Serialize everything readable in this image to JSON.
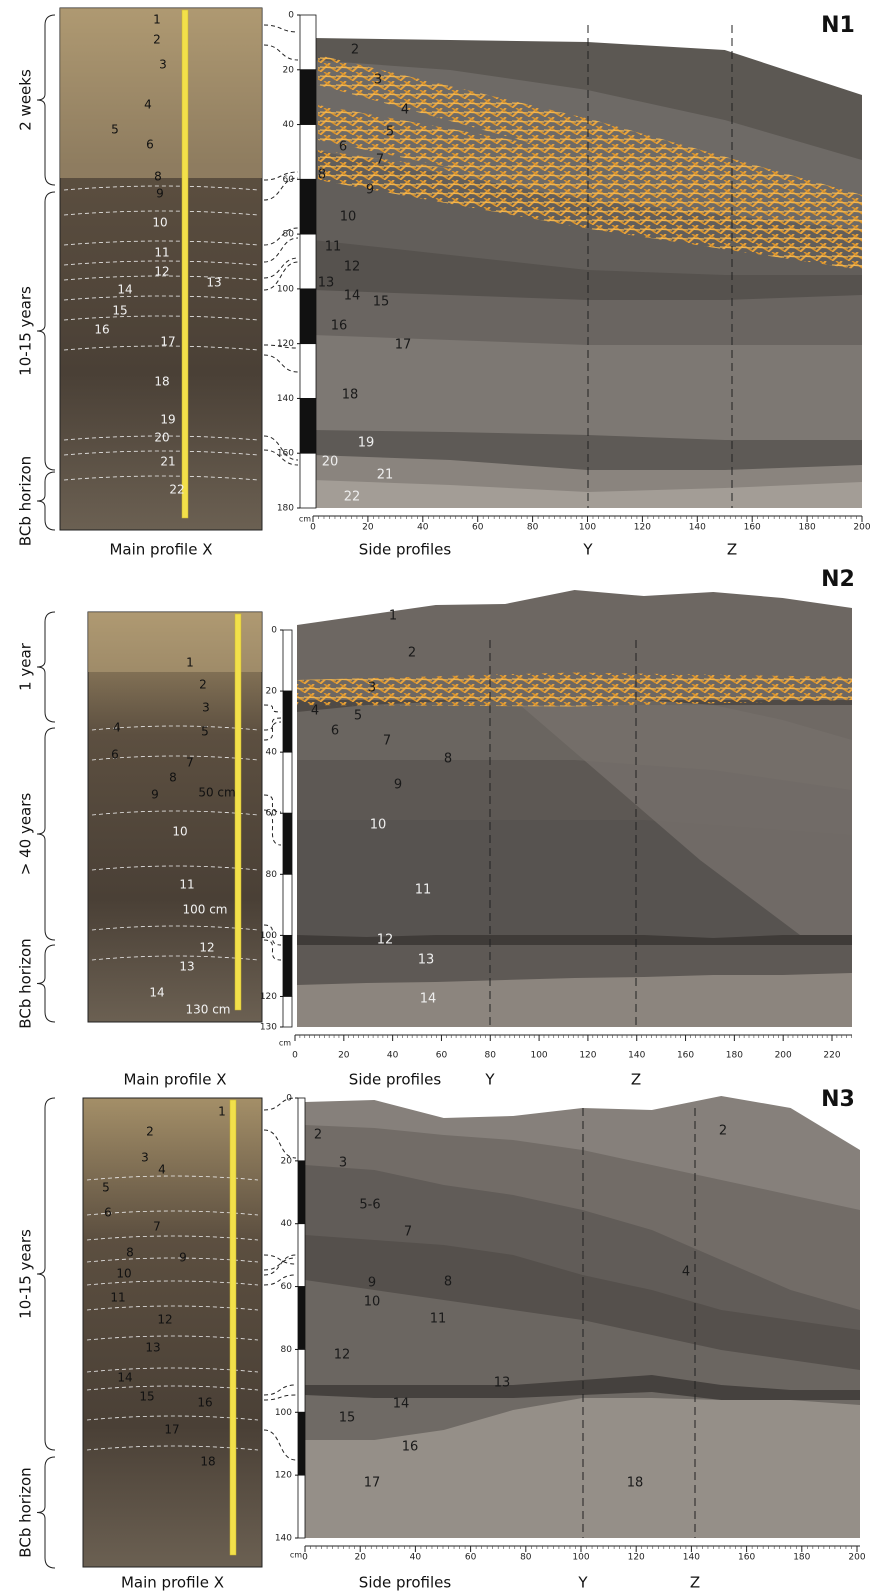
{
  "panels": [
    {
      "title": "N1",
      "age_labels": [
        "2 weeks",
        "10-15 years",
        "BCb horizon"
      ],
      "photo_labels": [
        "1",
        "2",
        "3",
        "4",
        "5",
        "6",
        "8",
        "9",
        "10",
        "11",
        "12",
        "13",
        "14",
        "15",
        "16",
        "17",
        "18",
        "19",
        "20",
        "21",
        "22"
      ],
      "photo_caption": "Main profile X",
      "depth_unit": "cm",
      "depth_ticks": [
        0,
        20,
        40,
        60,
        80,
        100,
        120,
        140,
        160,
        180
      ],
      "profile_labels": [
        "2",
        "3",
        "4",
        "5",
        "6",
        "7",
        "8",
        "9",
        "10",
        "11",
        "12",
        "13",
        "14",
        "15",
        "16",
        "17",
        "18",
        "19",
        "20",
        "21",
        "22"
      ],
      "x_ticks": [
        0,
        20,
        40,
        60,
        80,
        100,
        120,
        140,
        160,
        180,
        200
      ],
      "profile_caption": "Side profiles",
      "y_label": "Y",
      "z_label": "Z"
    },
    {
      "title": "N2",
      "age_labels": [
        "1 year",
        "> 40 years",
        "BCb horizon"
      ],
      "photo_labels": [
        "1",
        "2",
        "3",
        "4",
        "5",
        "6",
        "7",
        "8",
        "9",
        "50 cm",
        "10",
        "11",
        "100 cm",
        "12",
        "13",
        "14",
        "130 cm"
      ],
      "photo_caption": "Main profile X",
      "depth_unit": "cm",
      "depth_ticks": [
        0,
        20,
        40,
        60,
        80,
        100,
        120,
        130
      ],
      "profile_labels": [
        "1",
        "2",
        "3",
        "4",
        "5",
        "6",
        "7",
        "8",
        "9",
        "10",
        "11",
        "12",
        "13",
        "14"
      ],
      "x_ticks": [
        0,
        20,
        40,
        60,
        80,
        100,
        120,
        140,
        160,
        180,
        200,
        220
      ],
      "profile_caption": "Side profiles",
      "y_label": "Y",
      "z_label": "Z"
    },
    {
      "title": "N3",
      "age_labels": [
        "10-15 years",
        "BCb horizon"
      ],
      "photo_labels": [
        "1",
        "2",
        "3",
        "4",
        "5",
        "6",
        "7",
        "8",
        "9",
        "10",
        "11",
        "12",
        "13",
        "14",
        "15",
        "16",
        "17",
        "18"
      ],
      "photo_caption": "Main profile X",
      "depth_unit": "cm",
      "depth_ticks": [
        0,
        20,
        40,
        60,
        80,
        100,
        120,
        140
      ],
      "profile_labels": [
        "2",
        "3",
        "5-6",
        "7",
        "4",
        "9",
        "8",
        "10",
        "11",
        "12",
        "13",
        "14",
        "15",
        "16",
        "17",
        "18",
        "2"
      ],
      "x_ticks": [
        0,
        20,
        40,
        60,
        80,
        100,
        120,
        140,
        160,
        180,
        200
      ],
      "profile_caption": "Side profiles",
      "y_label": "Y",
      "z_label": "Z"
    }
  ]
}
